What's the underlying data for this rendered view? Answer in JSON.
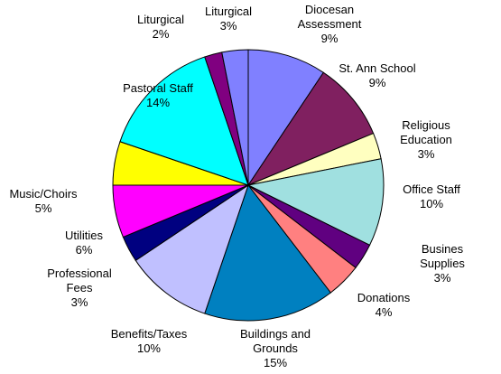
{
  "chart_data": {
    "type": "pie",
    "categories": [
      "Diocesan\nAssessment",
      "St. Ann School",
      "Religious\nEducation",
      "Office Staff",
      "Busines Supplies",
      "Donations",
      "Buildings and\nGrounds",
      "Benefits/Taxes",
      "Professional\nFees",
      "Utilities",
      "Music/Choirs",
      "Pastoral Staff",
      "Liturgical",
      "Liturgical"
    ],
    "values": [
      9,
      9,
      3,
      10,
      3,
      4,
      15,
      10,
      3,
      6,
      5,
      14,
      2,
      3
    ],
    "value_labels": [
      "9%",
      "9%",
      "3%",
      "10%",
      "3%",
      "4%",
      "15%",
      "10%",
      "3%",
      "6%",
      "5%",
      "14%",
      "2%",
      "3%"
    ],
    "colors": [
      "#8080ff",
      "#802060",
      "#ffffc0",
      "#a0e0e0",
      "#600080",
      "#ff8080",
      "#0080c0",
      "#c0c0ff",
      "#000080",
      "#ff00ff",
      "#ffff00",
      "#00ffff",
      "#800080",
      "#8080ff"
    ]
  }
}
